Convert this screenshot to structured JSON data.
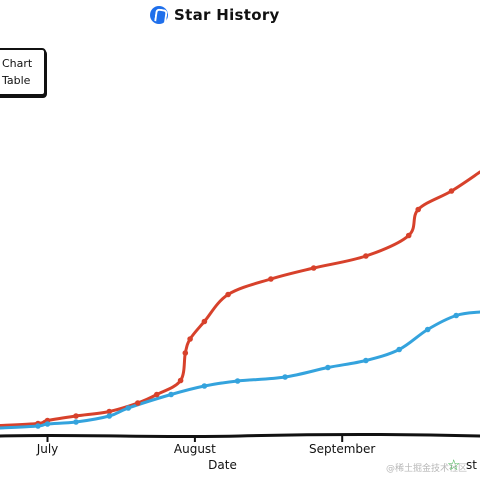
{
  "header": {
    "title": "Star History"
  },
  "view_toggle": {
    "chart_label": "Chart",
    "table_label": "Table"
  },
  "footer": {
    "watermark": "@稀土掘金技术社区",
    "brand": "st"
  },
  "colors": {
    "red_series": "#d7412b",
    "blue_series": "#34a3dd",
    "axis": "#111111"
  },
  "chart_data": {
    "type": "line",
    "title": "Star History",
    "xlabel": "Date",
    "ylabel": "",
    "x_ticks": [
      "July",
      "August",
      "September"
    ],
    "x_tick_dates": [
      "2023-07-01",
      "2023-08-01",
      "2023-09-01"
    ],
    "xlim": [
      "2023-06-21",
      "2023-09-30"
    ],
    "y_axis_labels_visible": false,
    "grid": false,
    "series": [
      {
        "color": "#d7412b",
        "points": [
          [
            "2023-06-21",
            5
          ],
          [
            "2023-06-29",
            9
          ],
          [
            "2023-07-01",
            15
          ],
          [
            "2023-07-07",
            24
          ],
          [
            "2023-07-14",
            33
          ],
          [
            "2023-07-20",
            50
          ],
          [
            "2023-07-24",
            67
          ],
          [
            "2023-07-29",
            95
          ],
          [
            "2023-07-30",
            150
          ],
          [
            "2023-07-31",
            178
          ],
          [
            "2023-08-03",
            213
          ],
          [
            "2023-08-08",
            267
          ],
          [
            "2023-08-17",
            298
          ],
          [
            "2023-08-26",
            320
          ],
          [
            "2023-09-06",
            344
          ],
          [
            "2023-09-15",
            385
          ],
          [
            "2023-09-17",
            437
          ],
          [
            "2023-09-24",
            474
          ],
          [
            "2023-09-30",
            512
          ]
        ]
      },
      {
        "color": "#34a3dd",
        "points": [
          [
            "2023-06-21",
            0
          ],
          [
            "2023-06-29",
            4
          ],
          [
            "2023-07-01",
            8
          ],
          [
            "2023-07-07",
            12
          ],
          [
            "2023-07-14",
            24
          ],
          [
            "2023-07-18",
            40
          ],
          [
            "2023-07-27",
            67
          ],
          [
            "2023-08-03",
            84
          ],
          [
            "2023-08-10",
            94
          ],
          [
            "2023-08-20",
            102
          ],
          [
            "2023-08-29",
            121
          ],
          [
            "2023-09-06",
            135
          ],
          [
            "2023-09-13",
            157
          ],
          [
            "2023-09-19",
            197
          ],
          [
            "2023-09-25",
            225
          ],
          [
            "2023-09-30",
            232
          ]
        ]
      }
    ]
  }
}
